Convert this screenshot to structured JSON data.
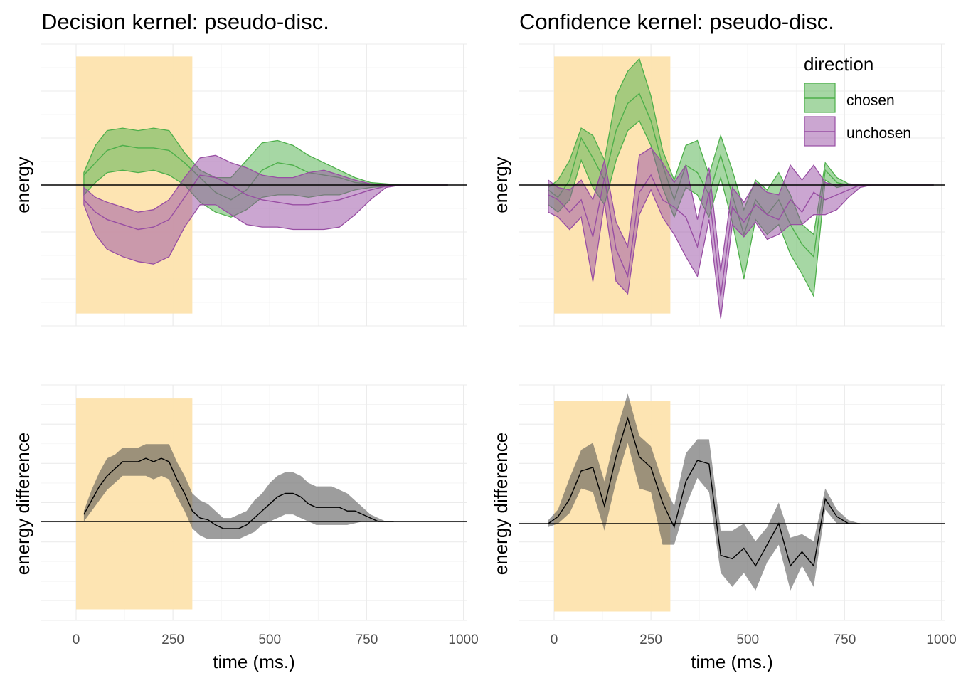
{
  "colors": {
    "chosen": "#4daf4a",
    "unchosen": "#984ea3",
    "difference": "#000000",
    "highlight": "#fde3ae"
  },
  "legend": {
    "title": "direction",
    "items": [
      "chosen",
      "unchosen"
    ]
  },
  "chart_data": [
    {
      "type": "area",
      "title": "Decision kernel: pseudo-disc.",
      "ylabel": "energy",
      "xlabel": "",
      "xlim": [
        -90,
        1010
      ],
      "ylim": [
        -5.7,
        5.7
      ],
      "xticks": [
        0,
        250,
        500,
        750,
        1000
      ],
      "xtick_labels": [],
      "highlight": [
        0,
        300
      ],
      "highlight_y": [
        -5.2,
        5.2
      ],
      "series": [
        {
          "name": "chosen",
          "x": [
            20,
            50,
            80,
            120,
            160,
            200,
            240,
            280,
            320,
            360,
            400,
            440,
            480,
            520,
            560,
            600,
            640,
            680,
            720,
            760,
            800,
            840,
            880,
            920,
            960
          ],
          "mean": [
            0.4,
            0.9,
            1.4,
            1.6,
            1.5,
            1.5,
            1.4,
            0.9,
            0.3,
            -0.3,
            -0.6,
            -0.2,
            0.6,
            0.9,
            0.8,
            0.5,
            0.4,
            0.3,
            0.1,
            0.05,
            0.02,
            0.0,
            0.0,
            0.0,
            0.0
          ],
          "lower": [
            -0.4,
            0.1,
            0.5,
            0.6,
            0.5,
            0.6,
            0.4,
            0.0,
            -0.7,
            -1.1,
            -1.3,
            -1.0,
            -0.5,
            -0.4,
            -0.4,
            -0.5,
            -0.4,
            -0.4,
            -0.2,
            -0.1,
            -0.05,
            0.0,
            0.0,
            0.0,
            0.0
          ],
          "upper": [
            0.5,
            1.6,
            2.2,
            2.3,
            2.2,
            2.3,
            2.2,
            1.3,
            0.6,
            0.3,
            0.3,
            1.0,
            1.7,
            1.8,
            1.6,
            1.2,
            0.9,
            0.6,
            0.3,
            0.1,
            0.05,
            0.0,
            0.0,
            0.0,
            0.0
          ]
        },
        {
          "name": "unchosen",
          "x": [
            20,
            50,
            80,
            120,
            160,
            200,
            240,
            280,
            320,
            360,
            400,
            440,
            480,
            520,
            560,
            600,
            640,
            680,
            720,
            760,
            800,
            840,
            880,
            920,
            960
          ],
          "mean": [
            -0.6,
            -1.1,
            -1.4,
            -1.6,
            -1.8,
            -1.7,
            -1.4,
            -0.5,
            0.4,
            0.3,
            0.0,
            -0.4,
            -0.6,
            -0.7,
            -0.8,
            -0.8,
            -0.7,
            -0.6,
            -0.4,
            -0.2,
            -0.05,
            0.0,
            0.0,
            0.0,
            0.0
          ],
          "lower": [
            -0.8,
            -2.0,
            -2.6,
            -2.9,
            -3.1,
            -3.2,
            -2.9,
            -1.7,
            -0.8,
            -0.8,
            -1.2,
            -1.6,
            -1.7,
            -1.7,
            -1.8,
            -1.8,
            -1.8,
            -1.7,
            -1.2,
            -0.6,
            -0.1,
            0.0,
            0.0,
            0.0,
            0.0
          ],
          "upper": [
            -0.1,
            -0.5,
            -0.7,
            -0.9,
            -1.1,
            -1.0,
            -0.6,
            0.3,
            1.1,
            1.2,
            0.9,
            0.7,
            0.4,
            0.3,
            0.3,
            0.5,
            0.6,
            0.4,
            0.2,
            0.05,
            0.0,
            0.0,
            0.0,
            0.0,
            0.0
          ]
        }
      ]
    },
    {
      "type": "area",
      "title": "Confidence kernel: pseudo-disc.",
      "ylabel": "energy",
      "xlabel": "",
      "xlim": [
        -90,
        1010
      ],
      "ylim": [
        -5.7,
        5.7
      ],
      "xticks": [
        0,
        250,
        500,
        750,
        1000
      ],
      "xtick_labels": [],
      "highlight": [
        0,
        300
      ],
      "highlight_y": [
        -5.2,
        5.2
      ],
      "series": [
        {
          "name": "chosen",
          "x": [
            -15,
            10,
            40,
            70,
            100,
            130,
            160,
            190,
            220,
            250,
            280,
            310,
            340,
            370,
            400,
            430,
            460,
            490,
            520,
            550,
            580,
            610,
            640,
            670,
            700,
            730,
            760,
            790,
            820,
            860,
            900,
            940,
            980
          ],
          "mean": [
            -0.2,
            -0.5,
            0.2,
            1.9,
            1.1,
            0.2,
            2.2,
            3.3,
            3.7,
            2.6,
            0.8,
            -0.6,
            0.8,
            0.5,
            -0.4,
            1.2,
            -0.4,
            -2.0,
            -0.6,
            -1.2,
            -0.6,
            -1.6,
            -2.4,
            -2.9,
            0.6,
            0.1,
            0.0,
            0.0,
            0.0,
            0.0,
            0.0,
            0.0,
            0.0
          ],
          "lower": [
            -0.8,
            -1.1,
            -0.6,
            1.0,
            -0.1,
            -0.8,
            1.0,
            2.2,
            2.6,
            1.6,
            -0.1,
            -1.3,
            -0.1,
            -0.4,
            -1.3,
            0.3,
            -1.5,
            -3.8,
            -1.4,
            -2.0,
            -1.6,
            -2.8,
            -3.6,
            -4.5,
            0.2,
            -0.1,
            0.0,
            0.0,
            0.0,
            0.0,
            0.0,
            0.0,
            0.0
          ],
          "upper": [
            -0.1,
            0.2,
            1.0,
            2.3,
            2.0,
            1.0,
            3.6,
            4.6,
            5.1,
            3.6,
            1.4,
            0.2,
            1.6,
            1.8,
            0.4,
            2.0,
            0.6,
            -1.0,
            0.2,
            -0.2,
            0.5,
            -0.4,
            -1.6,
            -2.0,
            0.9,
            0.3,
            0.05,
            0.0,
            0.0,
            0.0,
            0.0,
            0.0,
            0.0
          ]
        },
        {
          "name": "unchosen",
          "x": [
            -15,
            10,
            40,
            70,
            100,
            130,
            160,
            190,
            220,
            250,
            280,
            310,
            340,
            370,
            400,
            430,
            460,
            490,
            520,
            550,
            580,
            610,
            640,
            670,
            700,
            730,
            760,
            790,
            820,
            860,
            900,
            940,
            980
          ],
          "mean": [
            -0.4,
            -0.6,
            -1.1,
            -0.6,
            -2.1,
            0.3,
            -2.6,
            -3.7,
            -0.3,
            0.4,
            -0.6,
            -0.9,
            -1.3,
            -2.5,
            -0.3,
            -4.5,
            -0.9,
            -1.5,
            -0.8,
            -1.2,
            -1.4,
            -0.6,
            -1.1,
            -0.3,
            -0.6,
            -0.4,
            -0.2,
            0.0,
            0.0,
            0.0,
            0.0,
            0.0,
            0.0
          ],
          "lower": [
            -1.1,
            -1.3,
            -1.8,
            -1.3,
            -3.9,
            -0.7,
            -3.9,
            -4.4,
            -1.2,
            -0.2,
            -1.3,
            -2.0,
            -2.9,
            -3.7,
            -1.4,
            -5.4,
            -1.6,
            -2.1,
            -1.5,
            -2.2,
            -2.0,
            -1.6,
            -1.6,
            -1.2,
            -1.2,
            -1.0,
            -0.5,
            -0.1,
            0.0,
            0.0,
            0.0,
            0.0,
            0.0
          ],
          "upper": [
            0.2,
            -0.1,
            -0.2,
            0.2,
            -0.6,
            1.0,
            -1.5,
            -2.5,
            1.2,
            1.5,
            0.9,
            0.1,
            0.8,
            -1.4,
            0.7,
            -3.5,
            -0.1,
            -0.7,
            0.1,
            -0.3,
            -0.4,
            0.8,
            0.2,
            0.8,
            0.1,
            0.0,
            0.05,
            0.0,
            0.0,
            0.0,
            0.0,
            0.0,
            0.0
          ]
        }
      ]
    },
    {
      "type": "area",
      "title": "",
      "ylabel": "energy difference",
      "xlabel": "time (ms.)",
      "xlim": [
        -90,
        1010
      ],
      "ylim": [
        -2.8,
        3.9
      ],
      "xticks": [
        0,
        250,
        500,
        750,
        1000
      ],
      "xtick_labels": [
        "0",
        "250",
        "500",
        "750",
        "1000"
      ],
      "highlight": [
        0,
        300
      ],
      "highlight_y": [
        -2.5,
        3.5
      ],
      "series": [
        {
          "name": "difference",
          "x": [
            20,
            40,
            60,
            80,
            100,
            120,
            140,
            160,
            180,
            200,
            220,
            240,
            260,
            280,
            300,
            320,
            340,
            360,
            380,
            400,
            420,
            440,
            460,
            480,
            500,
            520,
            540,
            560,
            580,
            600,
            620,
            640,
            660,
            680,
            700,
            720,
            740,
            760,
            780,
            800,
            820
          ],
          "mean": [
            0.2,
            0.6,
            1.0,
            1.3,
            1.5,
            1.7,
            1.7,
            1.7,
            1.8,
            1.7,
            1.8,
            1.7,
            1.2,
            0.8,
            0.3,
            0.1,
            0.05,
            -0.1,
            -0.2,
            -0.2,
            -0.2,
            -0.1,
            0.1,
            0.3,
            0.5,
            0.7,
            0.8,
            0.8,
            0.7,
            0.5,
            0.4,
            0.4,
            0.4,
            0.4,
            0.3,
            0.3,
            0.2,
            0.1,
            0.0,
            0.0,
            0.0
          ],
          "lower": [
            0.0,
            0.3,
            0.6,
            0.9,
            1.1,
            1.3,
            1.3,
            1.3,
            1.3,
            1.2,
            1.3,
            1.2,
            0.7,
            0.3,
            -0.2,
            -0.4,
            -0.5,
            -0.5,
            -0.5,
            -0.5,
            -0.5,
            -0.4,
            -0.3,
            -0.1,
            0.0,
            0.1,
            0.2,
            0.2,
            0.1,
            0.0,
            -0.1,
            -0.1,
            -0.1,
            -0.1,
            -0.1,
            -0.05,
            0.0,
            0.0,
            0.0,
            0.0,
            0.0
          ],
          "upper": [
            0.3,
            0.9,
            1.4,
            1.8,
            1.9,
            2.1,
            2.1,
            2.1,
            2.2,
            2.2,
            2.2,
            2.2,
            1.7,
            1.3,
            0.8,
            0.6,
            0.5,
            0.3,
            0.1,
            0.1,
            0.2,
            0.3,
            0.6,
            0.8,
            1.1,
            1.3,
            1.4,
            1.4,
            1.3,
            1.1,
            1.0,
            1.0,
            1.0,
            0.9,
            0.8,
            0.6,
            0.4,
            0.2,
            0.1,
            0.0,
            0.0
          ]
        }
      ]
    },
    {
      "type": "area",
      "title": "",
      "ylabel": "energy difference",
      "xlabel": "time (ms.)",
      "xlim": [
        -90,
        1010
      ],
      "ylim": [
        -2.8,
        3.9
      ],
      "xticks": [
        0,
        250,
        500,
        750,
        1000
      ],
      "xtick_labels": [
        "0",
        "250",
        "500",
        "750",
        "1000"
      ],
      "highlight": [
        0,
        300
      ],
      "highlight_y": [
        -2.5,
        3.5
      ],
      "series": [
        {
          "name": "difference",
          "x": [
            -15,
            10,
            40,
            70,
            100,
            130,
            160,
            190,
            220,
            250,
            280,
            310,
            340,
            370,
            400,
            430,
            460,
            490,
            520,
            550,
            580,
            610,
            640,
            670,
            700,
            730,
            760,
            790
          ],
          "mean": [
            0.0,
            0.2,
            0.7,
            1.5,
            1.6,
            0.5,
            1.9,
            3.0,
            1.9,
            1.6,
            0.6,
            -0.1,
            1.2,
            1.8,
            1.7,
            -0.9,
            -1.0,
            -0.7,
            -1.2,
            -0.6,
            0.0,
            -1.2,
            -0.8,
            -1.2,
            0.7,
            0.2,
            0.0,
            0.0
          ],
          "lower": [
            -0.1,
            0.0,
            0.3,
            1.0,
            0.9,
            -0.2,
            1.2,
            2.3,
            1.0,
            0.9,
            -0.6,
            -0.6,
            0.5,
            1.3,
            0.9,
            -1.4,
            -1.8,
            -1.4,
            -1.9,
            -1.1,
            -0.6,
            -1.9,
            -1.2,
            -1.8,
            0.4,
            0.0,
            0.0,
            0.0
          ],
          "upper": [
            0.1,
            0.4,
            1.3,
            2.1,
            2.3,
            1.2,
            2.6,
            3.7,
            2.5,
            2.2,
            1.2,
            0.5,
            2.0,
            2.4,
            2.4,
            -0.2,
            -0.2,
            0.0,
            -0.5,
            -0.1,
            0.6,
            -0.4,
            -0.3,
            -0.5,
            1.0,
            0.4,
            0.1,
            0.0
          ]
        }
      ]
    }
  ]
}
